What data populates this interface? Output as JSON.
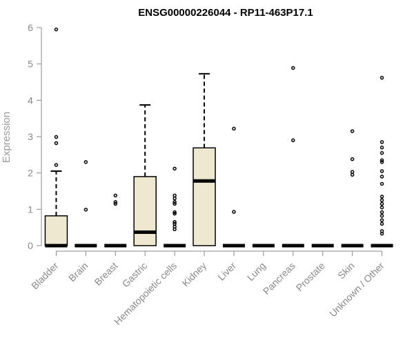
{
  "chart_data": {
    "type": "box",
    "title": "ENSG00000226044 - RP11-463P17.1",
    "xlabel": "",
    "ylabel": "Expression",
    "ylim": [
      0,
      6
    ],
    "yticks": [
      0,
      1,
      2,
      3,
      4,
      5,
      6
    ],
    "grid": false,
    "box_color": "#EEE8D0",
    "categories": [
      "Bladder",
      "Brain",
      "Breast",
      "Gastric",
      "Hematopoietic cells",
      "Kidney",
      "Liver",
      "Lung",
      "Pancreas",
      "Prostate",
      "Skin",
      "Unknown / Other"
    ],
    "boxes": [
      {
        "q1": 0,
        "median": 0,
        "q3": 0.82,
        "whisker_low": 0,
        "whisker_high": 2.05,
        "outliers": [
          2.22,
          2.82,
          2.99,
          5.95
        ]
      },
      {
        "q1": 0,
        "median": 0,
        "q3": 0,
        "whisker_low": 0,
        "whisker_high": 0,
        "outliers": [
          0.99,
          2.3
        ]
      },
      {
        "q1": 0,
        "median": 0,
        "q3": 0,
        "whisker_low": 0,
        "whisker_high": 0,
        "outliers": [
          1.15,
          1.2,
          1.38
        ]
      },
      {
        "q1": 0,
        "median": 0.37,
        "q3": 1.9,
        "whisker_low": 0,
        "whisker_high": 3.87,
        "outliers": []
      },
      {
        "q1": 0,
        "median": 0,
        "q3": 0,
        "whisker_low": 0,
        "whisker_high": 0,
        "outliers": [
          0.45,
          0.52,
          0.6,
          0.65,
          0.88,
          0.92,
          1.15,
          1.2,
          1.3,
          1.38,
          2.12
        ]
      },
      {
        "q1": 0,
        "median": 1.78,
        "q3": 2.69,
        "whisker_low": 0,
        "whisker_high": 4.73,
        "outliers": []
      },
      {
        "q1": 0,
        "median": 0,
        "q3": 0,
        "whisker_low": 0,
        "whisker_high": 0,
        "outliers": [
          0.93,
          3.22
        ]
      },
      {
        "q1": 0,
        "median": 0,
        "q3": 0,
        "whisker_low": 0,
        "whisker_high": 0,
        "outliers": []
      },
      {
        "q1": 0,
        "median": 0,
        "q3": 0,
        "whisker_low": 0,
        "whisker_high": 0,
        "outliers": [
          2.9,
          4.89
        ]
      },
      {
        "q1": 0,
        "median": 0,
        "q3": 0,
        "whisker_low": 0,
        "whisker_high": 0,
        "outliers": []
      },
      {
        "q1": 0,
        "median": 0,
        "q3": 0,
        "whisker_low": 0,
        "whisker_high": 0,
        "outliers": [
          1.95,
          2.03,
          2.38,
          3.15
        ]
      },
      {
        "q1": 0,
        "median": 0,
        "q3": 0,
        "whisker_low": 0,
        "whisker_high": 0,
        "outliers": [
          0.33,
          0.4,
          0.6,
          0.7,
          0.82,
          0.92,
          1.05,
          1.15,
          1.25,
          1.35,
          1.7,
          1.9,
          2.05,
          2.3,
          2.35,
          2.55,
          2.7,
          2.85,
          4.62
        ]
      }
    ]
  }
}
